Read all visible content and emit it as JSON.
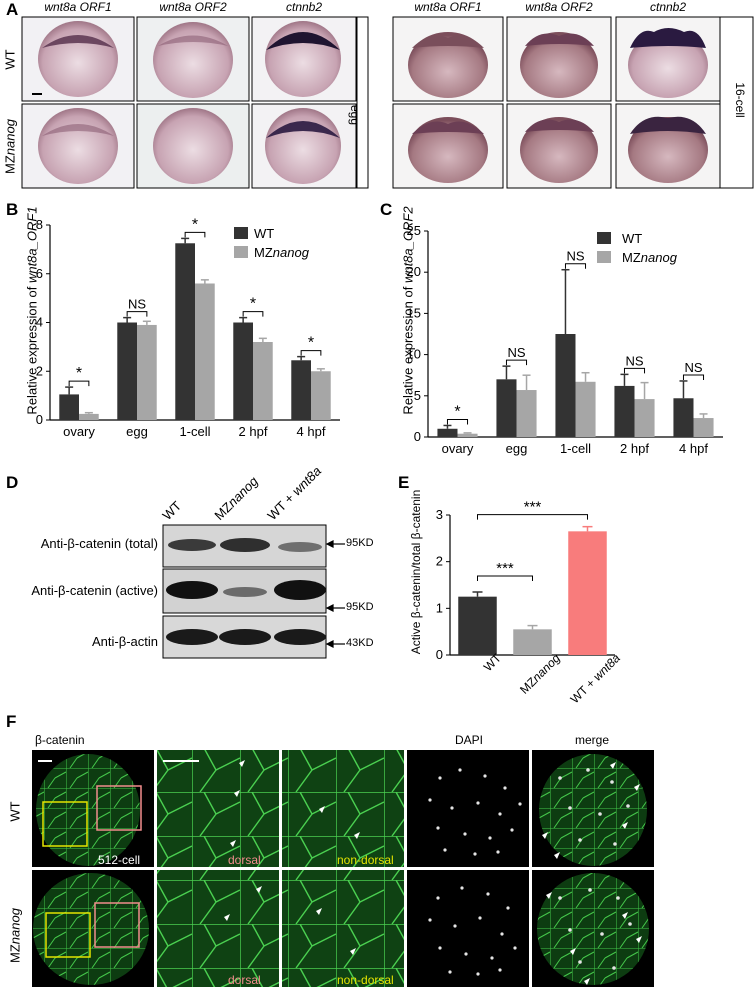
{
  "panel_a": {
    "letter": "A",
    "columns": [
      "wnt8a ORF1",
      "wnt8a ORF2",
      "ctnnb2",
      "wnt8a ORF1",
      "wnt8a ORF2",
      "ctnnb2"
    ],
    "rows": [
      "WT",
      "MZnanog"
    ],
    "row_label_parts": {
      "wt": "WT",
      "mz_prefix": "MZ",
      "mz_gene": "nanog"
    },
    "stages": [
      "egg",
      "16-cell"
    ]
  },
  "panel_b": {
    "letter": "B",
    "ylabel_prefix": "Relative expression of ",
    "ylabel_gene": "wnt8a_ORF1",
    "legend": {
      "wt": "WT",
      "mz_prefix": "MZ",
      "mz_gene": "nanog"
    },
    "sig_labels": [
      "*",
      "NS",
      "*",
      "*",
      "*"
    ]
  },
  "panel_c": {
    "letter": "C",
    "ylabel_prefix": "Relative expression of ",
    "ylabel_gene": "wnt8a_ORF2",
    "legend": {
      "wt": "WT",
      "mz_prefix": "MZ",
      "mz_gene": "nanog"
    },
    "sig_labels": [
      "*",
      "NS",
      "NS",
      "NS",
      "NS"
    ]
  },
  "panel_d": {
    "letter": "D",
    "lanes": [
      "WT",
      "MZnanog",
      "WT + wnt8a"
    ],
    "lane_parts": {
      "wt": "WT",
      "mz_prefix": "MZ",
      "mz_gene": "nanog",
      "wt_plus": "WT + ",
      "wt_plus_gene": "wnt8a"
    },
    "blots": [
      {
        "label": "Anti-β-catenin (total)",
        "size": "95KD"
      },
      {
        "label": "Anti-β-catenin (active)",
        "size": "95KD"
      },
      {
        "label": "Anti-β-actin",
        "size": "43KD"
      }
    ]
  },
  "panel_e": {
    "letter": "E",
    "ylabel": "Active β-catenin/total β-catenin",
    "x_parts": {
      "wt": "WT",
      "mz_prefix": "MZ",
      "mz_gene": "nanog",
      "wt_plus": "WT + ",
      "wt_plus_gene": "wnt8a"
    },
    "sig_labels": [
      "***",
      "***"
    ]
  },
  "panel_f": {
    "letter": "F",
    "col_headers": [
      "β-catenin",
      "DAPI",
      "merge"
    ],
    "rows": [
      "WT",
      "MZnanog"
    ],
    "stage_label": "512-cell",
    "dorsal_label": "dorsal",
    "nondorsal_label": "non-dorsal"
  },
  "colors": {
    "wt": "#333333",
    "mz": "#a6a6a6",
    "wnt8a": "#f87c7c",
    "dorsal_text": "#f28d8d",
    "nondorsal_text": "#e4e400",
    "fluor": "#35b53a"
  },
  "chart_data": [
    {
      "type": "bar",
      "title": "",
      "ylabel": "Relative expression of wnt8a_ORF1",
      "categories": [
        "ovary",
        "egg",
        "1-cell",
        "2 hpf",
        "4 hpf"
      ],
      "ylim": [
        0,
        8
      ],
      "yticks": [
        0,
        2,
        4,
        6,
        8
      ],
      "series": [
        {
          "name": "WT",
          "values": [
            1.05,
            4.0,
            7.25,
            4.0,
            2.45
          ],
          "errors": [
            0.3,
            0.2,
            0.2,
            0.2,
            0.15
          ]
        },
        {
          "name": "MZnanog",
          "values": [
            0.25,
            3.9,
            5.6,
            3.2,
            2.0
          ],
          "errors": [
            0.05,
            0.15,
            0.15,
            0.15,
            0.1
          ]
        }
      ],
      "legend": "top-right"
    },
    {
      "type": "bar",
      "title": "",
      "ylabel": "Relative expression of wnt8a_ORF2",
      "categories": [
        "ovary",
        "egg",
        "1-cell",
        "2 hpf",
        "4 hpf"
      ],
      "ylim": [
        0,
        25
      ],
      "yticks": [
        0,
        5,
        10,
        15,
        20,
        25
      ],
      "series": [
        {
          "name": "WT",
          "values": [
            1.0,
            7.0,
            12.5,
            6.2,
            4.7
          ],
          "errors": [
            0.4,
            1.6,
            7.8,
            1.4,
            2.1
          ]
        },
        {
          "name": "MZnanog",
          "values": [
            0.4,
            5.7,
            6.7,
            4.6,
            2.3
          ],
          "errors": [
            0.1,
            1.8,
            1.1,
            2.0,
            0.5
          ]
        }
      ],
      "legend": "top-right"
    },
    {
      "type": "bar",
      "title": "",
      "ylabel": "Active β-catenin/total β-catenin",
      "categories": [
        "WT",
        "MZnanog",
        "WT + wnt8a"
      ],
      "ylim": [
        0,
        3
      ],
      "yticks": [
        0,
        1,
        2,
        3
      ],
      "values": [
        1.25,
        0.55,
        2.65
      ],
      "errors": [
        0.1,
        0.08,
        0.1
      ]
    }
  ]
}
